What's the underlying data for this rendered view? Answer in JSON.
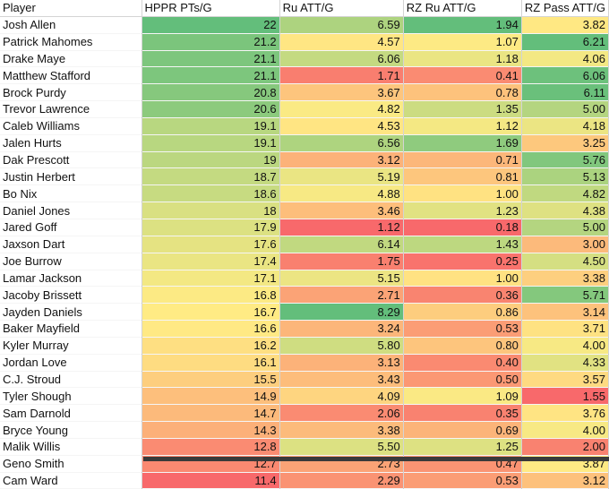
{
  "columns": [
    "Player",
    "HPPR PTs/G",
    "Ru ATT/G",
    "RZ Ru ATT/G",
    "RZ Pass ATT/G"
  ],
  "rows": [
    {
      "player": "Josh Allen",
      "hppr": "22",
      "ru": "6.59",
      "rzru": "1.94",
      "rzpass": "3.82"
    },
    {
      "player": "Patrick Mahomes",
      "hppr": "21.2",
      "ru": "4.57",
      "rzru": "1.07",
      "rzpass": "6.21"
    },
    {
      "player": "Drake Maye",
      "hppr": "21.1",
      "ru": "6.06",
      "rzru": "1.18",
      "rzpass": "4.06"
    },
    {
      "player": "Matthew Stafford",
      "hppr": "21.1",
      "ru": "1.71",
      "rzru": "0.41",
      "rzpass": "6.06"
    },
    {
      "player": "Brock Purdy",
      "hppr": "20.8",
      "ru": "3.67",
      "rzru": "0.78",
      "rzpass": "6.11"
    },
    {
      "player": "Trevor Lawrence",
      "hppr": "20.6",
      "ru": "4.82",
      "rzru": "1.35",
      "rzpass": "5.00"
    },
    {
      "player": "Caleb Williams",
      "hppr": "19.1",
      "ru": "4.53",
      "rzru": "1.12",
      "rzpass": "4.18"
    },
    {
      "player": "Jalen Hurts",
      "hppr": "19.1",
      "ru": "6.56",
      "rzru": "1.69",
      "rzpass": "3.25"
    },
    {
      "player": "Dak Prescott",
      "hppr": "19",
      "ru": "3.12",
      "rzru": "0.71",
      "rzpass": "5.76"
    },
    {
      "player": "Justin Herbert",
      "hppr": "18.7",
      "ru": "5.19",
      "rzru": "0.81",
      "rzpass": "5.13"
    },
    {
      "player": "Bo Nix",
      "hppr": "18.6",
      "ru": "4.88",
      "rzru": "1.00",
      "rzpass": "4.82"
    },
    {
      "player": "Daniel Jones",
      "hppr": "18",
      "ru": "3.46",
      "rzru": "1.23",
      "rzpass": "4.38"
    },
    {
      "player": "Jared Goff",
      "hppr": "17.9",
      "ru": "1.12",
      "rzru": "0.18",
      "rzpass": "5.00"
    },
    {
      "player": "Jaxson Dart",
      "hppr": "17.6",
      "ru": "6.14",
      "rzru": "1.43",
      "rzpass": "3.00"
    },
    {
      "player": "Joe Burrow",
      "hppr": "17.4",
      "ru": "1.75",
      "rzru": "0.25",
      "rzpass": "4.50"
    },
    {
      "player": "Lamar Jackson",
      "hppr": "17.1",
      "ru": "5.15",
      "rzru": "1.00",
      "rzpass": "3.38"
    },
    {
      "player": "Jacoby Brissett",
      "hppr": "16.8",
      "ru": "2.71",
      "rzru": "0.36",
      "rzpass": "5.71"
    },
    {
      "player": "Jayden Daniels",
      "hppr": "16.7",
      "ru": "8.29",
      "rzru": "0.86",
      "rzpass": "3.14"
    },
    {
      "player": "Baker Mayfield",
      "hppr": "16.6",
      "ru": "3.24",
      "rzru": "0.53",
      "rzpass": "3.71"
    },
    {
      "player": "Kyler Murray",
      "hppr": "16.2",
      "ru": "5.80",
      "rzru": "0.80",
      "rzpass": "4.00"
    },
    {
      "player": "Jordan Love",
      "hppr": "16.1",
      "ru": "3.13",
      "rzru": "0.40",
      "rzpass": "4.33"
    },
    {
      "player": "C.J. Stroud",
      "hppr": "15.5",
      "ru": "3.43",
      "rzru": "0.50",
      "rzpass": "3.57"
    },
    {
      "player": "Tyler Shough",
      "hppr": "14.9",
      "ru": "4.09",
      "rzru": "1.09",
      "rzpass": "1.55"
    },
    {
      "player": "Sam Darnold",
      "hppr": "14.7",
      "ru": "2.06",
      "rzru": "0.35",
      "rzpass": "3.76"
    },
    {
      "player": "Bryce Young",
      "hppr": "14.3",
      "ru": "3.38",
      "rzru": "0.69",
      "rzpass": "4.00"
    },
    {
      "player": "Malik Willis",
      "hppr": "12.8",
      "ru": "5.50",
      "rzru": "1.25",
      "rzpass": "2.00"
    },
    {
      "player": "Geno Smith",
      "hppr": "12.7",
      "ru": "2.73",
      "rzru": "0.47",
      "rzpass": "3.87"
    },
    {
      "player": "Cam Ward",
      "hppr": "11.4",
      "ru": "2.29",
      "rzru": "0.53",
      "rzpass": "3.12"
    }
  ],
  "scale_colors": {
    "low": "#f8696b",
    "mid": "#ffeb84",
    "high": "#63be7b"
  }
}
